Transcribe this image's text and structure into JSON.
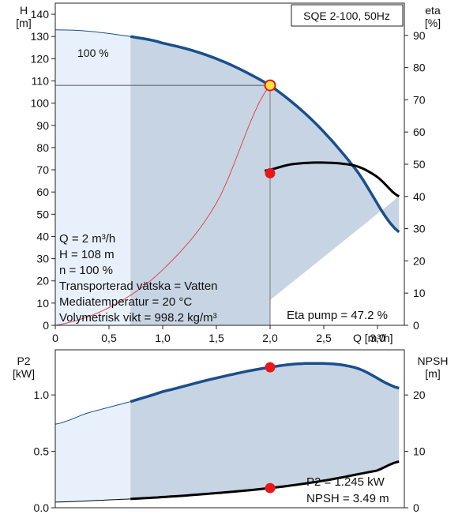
{
  "top_chart": {
    "title": "SQE 2-100, 50Hz",
    "y_left_title": [
      "H",
      "[m]"
    ],
    "y_right_title": [
      "eta",
      "[%]"
    ],
    "x_title": "Q [m³/h]",
    "x_ticks": [
      "0",
      "0,5",
      "1,0",
      "1,5",
      "2,0",
      "2,5",
      "3,0"
    ],
    "y_left_ticks": [
      "0",
      "10",
      "20",
      "30",
      "40",
      "50",
      "60",
      "70",
      "80",
      "90",
      "100",
      "110",
      "120",
      "130",
      "140"
    ],
    "y_right_ticks": [
      "0",
      "10",
      "20",
      "30",
      "40",
      "50",
      "60",
      "70",
      "80",
      "90"
    ],
    "speed_label": "100 %",
    "info_lines": [
      "Q = 2 m³/h",
      "H = 108 m",
      "n = 100 %",
      "Transporterad vätska = Vatten",
      "Mediatemperatur = 20 °C",
      "Volymetrisk vikt = 998.2 kg/m³"
    ],
    "eta_label": "Eta pump = 47.2 %"
  },
  "bottom_chart": {
    "y_left_title": [
      "P2",
      "[kW]"
    ],
    "y_right_title": [
      "NPSH",
      "[m]"
    ],
    "y_left_ticks": [
      "0.0",
      "0.5",
      "1.0"
    ],
    "y_right_ticks": [
      "0",
      "10",
      "20"
    ],
    "info_lines": [
      "P2 = 1.245 kW",
      "NPSH = 3.49 m"
    ]
  },
  "colors": {
    "head_curve": "#1a4f8c",
    "area_fill": "#c7d4e4",
    "area_light": "#e8f1fb",
    "duty_point": "#f5e63a",
    "marker": "#e81818",
    "eta_curve": "#000000",
    "system_curve": "#e04848"
  },
  "chart_data": [
    {
      "type": "line",
      "title": "SQE 2-100, 50Hz",
      "xlabel": "Q [m³/h]",
      "ylabel": "H [m]",
      "y2label": "eta [%]",
      "xlim": [
        0,
        3.25
      ],
      "ylim": [
        0,
        145
      ],
      "y2lim": [
        0,
        100
      ],
      "series": [
        {
          "axis": "left",
          "x": [
            0,
            0.3,
            0.7,
            1.0,
            1.5,
            2.0,
            2.4,
            2.8,
            3.2
          ],
          "values": [
            133,
            132.4,
            130,
            127,
            120,
            108,
            92,
            70,
            42
          ]
        },
        {
          "axis": "right",
          "x": [
            1.95,
            2.2,
            2.5,
            2.8,
            3.0,
            3.2
          ],
          "values": [
            48,
            50,
            50.5,
            49.5,
            46,
            40
          ]
        },
        {
          "x": [
            0,
            0.5,
            1.0,
            1.5,
            2.0
          ],
          "values": [
            0,
            8,
            25,
            55,
            108
          ]
        }
      ],
      "duty_point": {
        "x": 2.0,
        "y": 108
      },
      "eta_point": {
        "x": 2.0,
        "y": 47.2
      },
      "grid": false
    },
    {
      "type": "line",
      "xlabel": "Q [m³/h]",
      "ylabel": "P2 [kW]",
      "y2label": "NPSH [m]",
      "xlim": [
        0,
        3.25
      ],
      "ylim": [
        0,
        1.4
      ],
      "y2lim": [
        0,
        28
      ],
      "series": [
        {
          "axis": "left",
          "x": [
            0,
            0.3,
            0.7,
            1.0,
            1.5,
            2.0,
            2.4,
            2.8,
            3.2
          ],
          "values": [
            0.74,
            0.84,
            0.94,
            1.03,
            1.15,
            1.245,
            1.28,
            1.24,
            1.06
          ]
        },
        {
          "axis": "right",
          "x": [
            0,
            0.7,
            1.0,
            1.5,
            2.0,
            2.5,
            3.0,
            3.2
          ],
          "values": [
            1.0,
            1.55,
            1.9,
            2.6,
            3.49,
            4.8,
            6.6,
            8.2
          ]
        }
      ],
      "p2_point": {
        "x": 2.0,
        "y": 1.245
      },
      "npsh_point": {
        "x": 2.0,
        "y": 3.49
      },
      "grid": false
    }
  ]
}
